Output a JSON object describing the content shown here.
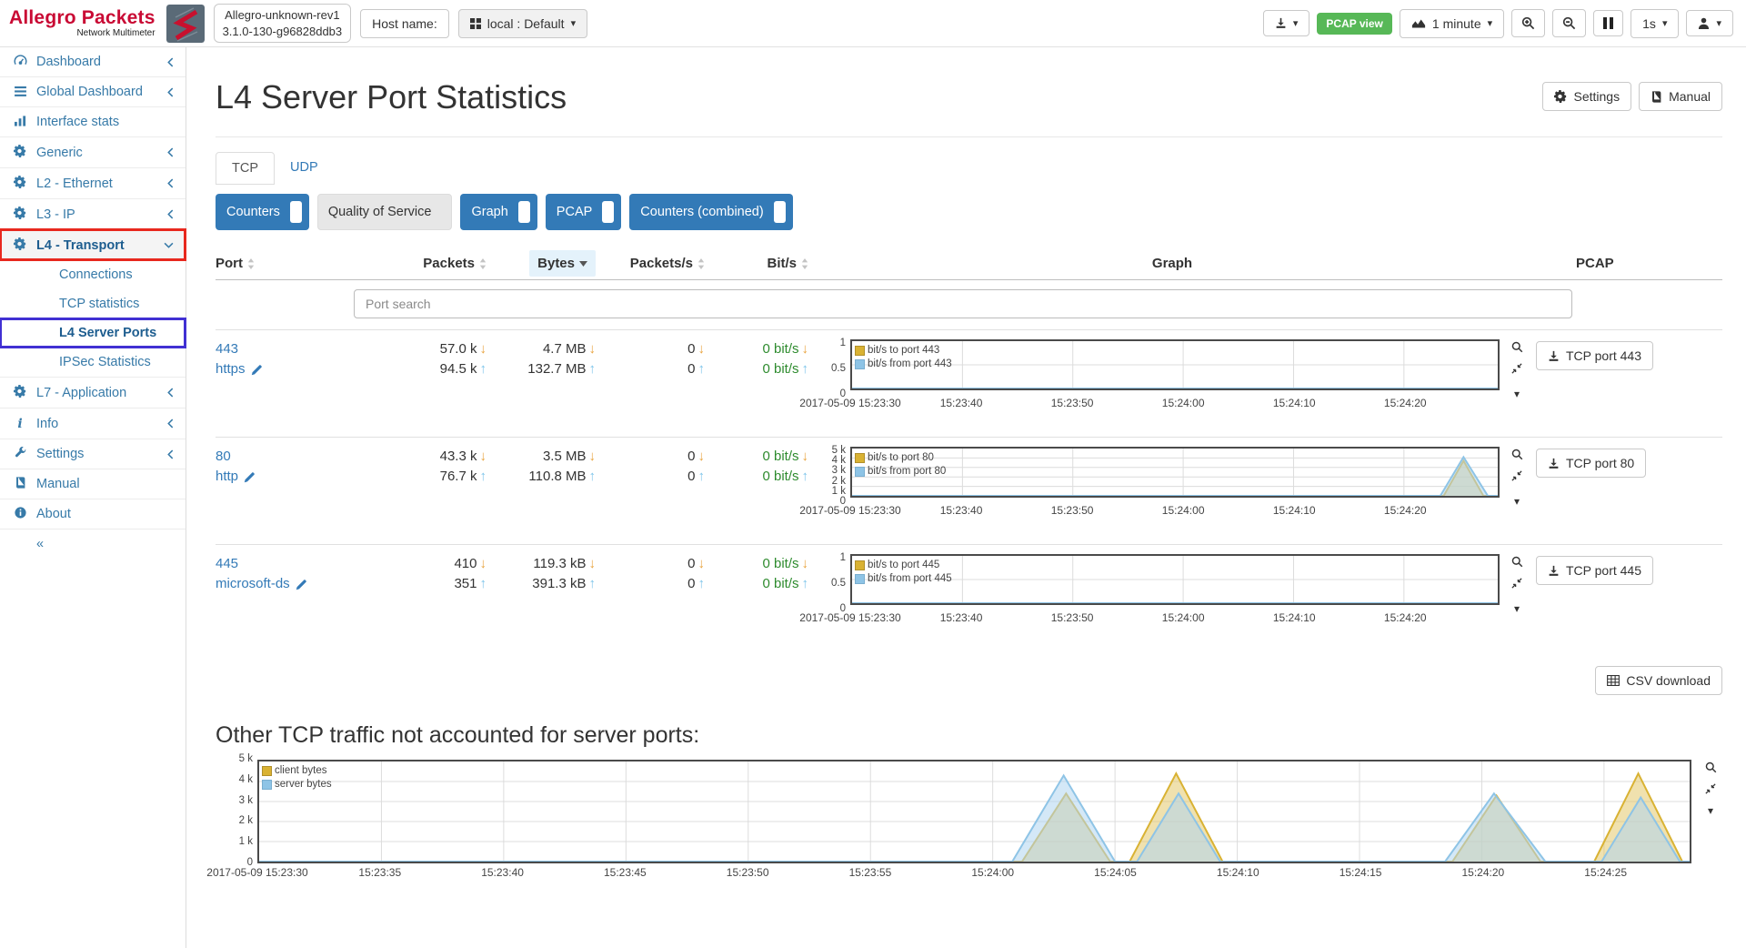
{
  "header": {
    "brand_title": "Allegro Packets",
    "brand_subtitle": "Network Multimeter",
    "device_line1": "Allegro-unknown-rev1",
    "device_line2": "3.1.0-130-g96828ddb3",
    "host_label": "Host name:",
    "host_value": "local : Default",
    "pcap_badge": "PCAP view",
    "interval_value": "1 minute",
    "refresh_value": "1s"
  },
  "sidebar": {
    "items": [
      {
        "id": "dashboard",
        "label": "Dashboard",
        "icon": "gauge",
        "chevron": "left"
      },
      {
        "id": "global-dashboard",
        "label": "Global Dashboard",
        "icon": "list",
        "chevron": "left"
      },
      {
        "id": "interface-stats",
        "label": "Interface stats",
        "icon": "bars",
        "chevron": null
      },
      {
        "id": "generic",
        "label": "Generic",
        "icon": "gear",
        "chevron": "left"
      },
      {
        "id": "l2-ethernet",
        "label": "L2 - Ethernet",
        "icon": "gear",
        "chevron": "left"
      },
      {
        "id": "l3-ip",
        "label": "L3 - IP",
        "icon": "gear",
        "chevron": "left"
      },
      {
        "id": "l4-transport",
        "label": "L4 - Transport",
        "icon": "gear",
        "chevron": "down",
        "annotation": "red",
        "expanded": true
      },
      {
        "id": "connections",
        "label": "Connections",
        "sub": true
      },
      {
        "id": "tcp-statistics",
        "label": "TCP statistics",
        "sub": true
      },
      {
        "id": "l4-server-ports",
        "label": "L4 Server Ports",
        "sub": true,
        "active": true,
        "annotation": "blue"
      },
      {
        "id": "ipsec-statistics",
        "label": "IPSec Statistics",
        "sub": true
      },
      {
        "id": "l7-application",
        "label": "L7 - Application",
        "icon": "gear",
        "chevron": "left"
      },
      {
        "id": "info",
        "label": "Info",
        "icon": "info-i",
        "chevron": "left"
      },
      {
        "id": "settings",
        "label": "Settings",
        "icon": "wrench",
        "chevron": "left"
      },
      {
        "id": "manual",
        "label": "Manual",
        "icon": "book",
        "chevron": null
      },
      {
        "id": "about",
        "label": "About",
        "icon": "info-circle",
        "chevron": null
      },
      {
        "id": "collapse",
        "label": "«",
        "collapse": true
      }
    ]
  },
  "page": {
    "title": "L4 Server Port Statistics",
    "settings_button": "Settings",
    "manual_button": "Manual",
    "tabs": [
      "TCP",
      "UDP"
    ],
    "toggles": [
      "Counters",
      "Quality of Service",
      "Graph",
      "PCAP",
      "Counters (combined)"
    ],
    "csv_button": "CSV download",
    "other_heading": "Other TCP traffic not accounted for server ports:"
  },
  "table": {
    "headers": {
      "port": "Port",
      "packets": "Packets",
      "bytes": "Bytes",
      "packets_s": "Packets/s",
      "bit_s": "Bit/s",
      "graph": "Graph",
      "pcap": "PCAP"
    },
    "search_placeholder": "Port search",
    "rows": [
      {
        "port": "443",
        "service": "https",
        "packets": {
          "down": "57.0 k",
          "up": "94.5 k"
        },
        "bytes": {
          "down": "4.7 MB",
          "up": "132.7 MB"
        },
        "pps": {
          "down": "0",
          "up": "0"
        },
        "bps": {
          "down": "0 bit/s",
          "up": "0 bit/s"
        },
        "pcap_label": "TCP port 443",
        "chart": 0
      },
      {
        "port": "80",
        "service": "http",
        "packets": {
          "down": "43.3 k",
          "up": "76.7 k"
        },
        "bytes": {
          "down": "3.5 MB",
          "up": "110.8 MB"
        },
        "pps": {
          "down": "0",
          "up": "0"
        },
        "bps": {
          "down": "0 bit/s",
          "up": "0 bit/s"
        },
        "pcap_label": "TCP port 80",
        "chart": 1
      },
      {
        "port": "445",
        "service": "microsoft-ds",
        "packets": {
          "down": "410",
          "up": "351"
        },
        "bytes": {
          "down": "119.3 kB",
          "up": "391.3 kB"
        },
        "pps": {
          "down": "0",
          "up": "0"
        },
        "bps": {
          "down": "0 bit/s",
          "up": "0 bit/s"
        },
        "pcap_label": "TCP port 445",
        "chart": 2
      }
    ]
  },
  "arrows": {
    "down": "↓",
    "up": "↑"
  },
  "colors": {
    "accent": "#337ab7",
    "badge_green": "#57b857",
    "down_arrow": "#e8a33d",
    "up_arrow": "#7cc4ea",
    "green_text": "#2e8b2e",
    "client_line": "#d9b233",
    "client_fill": "rgba(226,196,94,0.5)",
    "server_line": "#8ec4e6",
    "server_fill": "rgba(177,213,240,0.55)",
    "grid": "#dcdcdc"
  },
  "chart_data": [
    {
      "type": "area",
      "id": "port-443-bits",
      "ylim": [
        0,
        1
      ],
      "yticks": [
        {
          "v": 0,
          "label": "0"
        },
        {
          "v": 0.5,
          "label": "0.5"
        },
        {
          "v": 1,
          "label": "1"
        }
      ],
      "t_max": 58.5,
      "xticks": [
        {
          "t": 0,
          "label": "2017-05-09 15:23:30"
        },
        {
          "t": 10,
          "label": "15:23:40"
        },
        {
          "t": 20,
          "label": "15:23:50"
        },
        {
          "t": 30,
          "label": "15:24:00"
        },
        {
          "t": 40,
          "label": "15:24:10"
        },
        {
          "t": 50,
          "label": "15:24:20"
        }
      ],
      "series": [
        {
          "name": "bit/s to port 443",
          "color": "client",
          "points": [
            [
              0,
              0
            ],
            [
              58.5,
              0
            ]
          ]
        },
        {
          "name": "bit/s from port 443",
          "color": "server",
          "points": [
            [
              0,
              0
            ],
            [
              58.5,
              0
            ]
          ]
        }
      ]
    },
    {
      "type": "area",
      "id": "port-80-bits",
      "ylim": [
        0,
        5000
      ],
      "yticks": [
        {
          "v": 0,
          "label": "0"
        },
        {
          "v": 1000,
          "label": "1 k"
        },
        {
          "v": 2000,
          "label": "2 k"
        },
        {
          "v": 3000,
          "label": "3 k"
        },
        {
          "v": 4000,
          "label": "4 k"
        },
        {
          "v": 5000,
          "label": "5 k"
        }
      ],
      "t_max": 58.5,
      "xticks": [
        {
          "t": 0,
          "label": "2017-05-09 15:23:30"
        },
        {
          "t": 10,
          "label": "15:23:40"
        },
        {
          "t": 20,
          "label": "15:23:50"
        },
        {
          "t": 30,
          "label": "15:24:00"
        },
        {
          "t": 40,
          "label": "15:24:10"
        },
        {
          "t": 50,
          "label": "15:24:20"
        }
      ],
      "series": [
        {
          "name": "bit/s to port 80",
          "color": "client",
          "points": [
            [
              0,
              0
            ],
            [
              53.6,
              0
            ],
            [
              55.4,
              3700
            ],
            [
              57.2,
              0
            ],
            [
              58.5,
              0
            ]
          ]
        },
        {
          "name": "bit/s from port 80",
          "color": "server",
          "points": [
            [
              0,
              0
            ],
            [
              53.3,
              0
            ],
            [
              55.4,
              4100
            ],
            [
              57.6,
              0
            ],
            [
              58.5,
              0
            ]
          ]
        }
      ]
    },
    {
      "type": "area",
      "id": "port-445-bits",
      "ylim": [
        0,
        1
      ],
      "yticks": [
        {
          "v": 0,
          "label": "0"
        },
        {
          "v": 0.5,
          "label": "0.5"
        },
        {
          "v": 1,
          "label": "1"
        }
      ],
      "t_max": 58.5,
      "xticks": [
        {
          "t": 0,
          "label": "2017-05-09 15:23:30"
        },
        {
          "t": 10,
          "label": "15:23:40"
        },
        {
          "t": 20,
          "label": "15:23:50"
        },
        {
          "t": 30,
          "label": "15:24:00"
        },
        {
          "t": 40,
          "label": "15:24:10"
        },
        {
          "t": 50,
          "label": "15:24:20"
        }
      ],
      "series": [
        {
          "name": "bit/s to port 445",
          "color": "client",
          "points": [
            [
              0,
              0
            ],
            [
              58.5,
              0
            ]
          ]
        },
        {
          "name": "bit/s from port 445",
          "color": "server",
          "points": [
            [
              0,
              0
            ],
            [
              58.5,
              0
            ]
          ]
        }
      ]
    },
    {
      "type": "area",
      "id": "other-tcp-traffic",
      "ylim": [
        0,
        5000
      ],
      "yticks": [
        {
          "v": 0,
          "label": "0"
        },
        {
          "v": 1000,
          "label": "1 k"
        },
        {
          "v": 2000,
          "label": "2 k"
        },
        {
          "v": 3000,
          "label": "3 k"
        },
        {
          "v": 4000,
          "label": "4 k"
        },
        {
          "v": 5000,
          "label": "5 k"
        }
      ],
      "t_max": 58.5,
      "xticks": [
        {
          "t": 0,
          "label": "2017-05-09 15:23:30"
        },
        {
          "t": 5,
          "label": "15:23:35"
        },
        {
          "t": 10,
          "label": "15:23:40"
        },
        {
          "t": 15,
          "label": "15:23:45"
        },
        {
          "t": 20,
          "label": "15:23:50"
        },
        {
          "t": 25,
          "label": "15:23:55"
        },
        {
          "t": 30,
          "label": "15:24:00"
        },
        {
          "t": 35,
          "label": "15:24:05"
        },
        {
          "t": 40,
          "label": "15:24:10"
        },
        {
          "t": 45,
          "label": "15:24:15"
        },
        {
          "t": 50,
          "label": "15:24:20"
        },
        {
          "t": 55,
          "label": "15:24:25"
        }
      ],
      "series": [
        {
          "name": "client bytes",
          "color": "client",
          "points": [
            [
              0,
              0
            ],
            [
              31.2,
              0
            ],
            [
              33,
              3400
            ],
            [
              34.8,
              0
            ],
            [
              35.6,
              0
            ],
            [
              37.5,
              4400
            ],
            [
              39.4,
              0
            ],
            [
              48.8,
              0
            ],
            [
              50.6,
              3300
            ],
            [
              52.4,
              0
            ],
            [
              54.6,
              0
            ],
            [
              56.4,
              4400
            ],
            [
              58.2,
              0
            ],
            [
              58.5,
              0
            ]
          ]
        },
        {
          "name": "server bytes",
          "color": "server",
          "points": [
            [
              0,
              0
            ],
            [
              30.8,
              0
            ],
            [
              32.9,
              4300
            ],
            [
              35,
              0
            ],
            [
              35.9,
              0
            ],
            [
              37.6,
              3400
            ],
            [
              39.3,
              0
            ],
            [
              48.5,
              0
            ],
            [
              50.5,
              3400
            ],
            [
              52.6,
              0
            ],
            [
              54.9,
              0
            ],
            [
              56.5,
              3200
            ],
            [
              58.1,
              0
            ],
            [
              58.5,
              0
            ]
          ]
        }
      ]
    }
  ]
}
